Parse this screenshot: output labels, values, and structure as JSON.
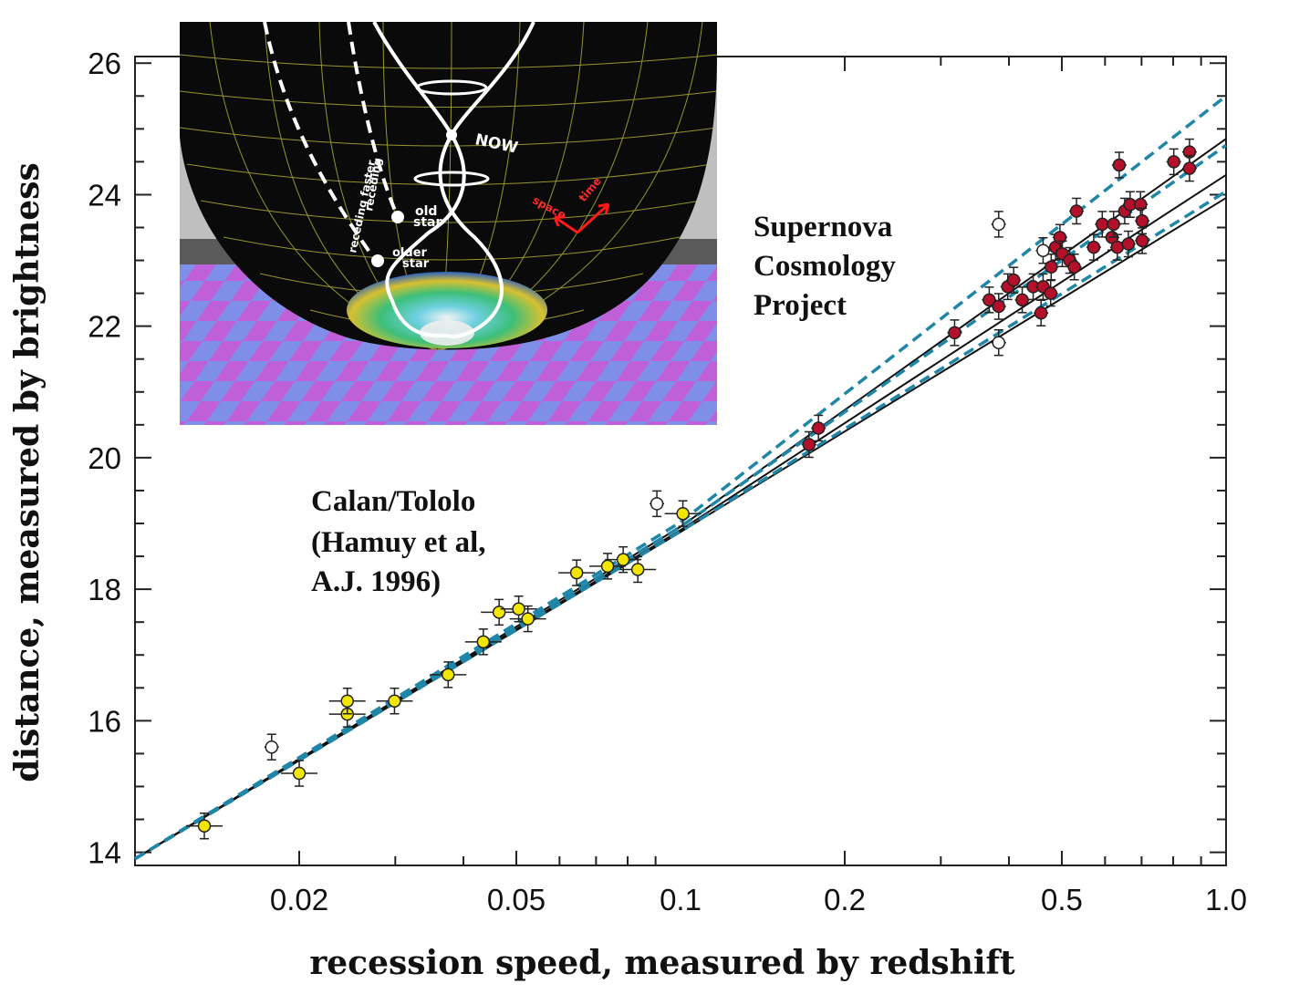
{
  "chart_data": {
    "type": "scatter",
    "xlabel": "recession speed, measured by redshift",
    "ylabel": "distance, measured by brightness",
    "x_scale": "log",
    "xlim": [
      0.01,
      1.0
    ],
    "ylim": [
      13.8,
      26.1
    ],
    "xticks": [
      0.02,
      0.05,
      0.1,
      0.2,
      0.5,
      1.0
    ],
    "xtick_labels": [
      "0.02",
      "0.05",
      "0.1",
      "0.2",
      "0.5",
      "1.0"
    ],
    "yticks": [
      14,
      16,
      18,
      20,
      22,
      24,
      26
    ],
    "ytick_labels": [
      "14",
      "16",
      "18",
      "20",
      "22",
      "24",
      "26"
    ],
    "annotations": [
      {
        "lines": [
          "Calan/Tololo",
          "(Hamuy et al,",
          "A.J. 1996)"
        ]
      },
      {
        "lines": [
          "Supernova",
          "Cosmology",
          "Project"
        ]
      }
    ],
    "series": [
      {
        "color": "#f2e600",
        "points": [
          [
            0.0134,
            14.4
          ],
          [
            0.02,
            15.2
          ],
          [
            0.0245,
            16.1
          ],
          [
            0.0245,
            16.3
          ],
          [
            0.0299,
            16.3
          ],
          [
            0.0375,
            16.7
          ],
          [
            0.0435,
            17.2
          ],
          [
            0.0465,
            17.65
          ],
          [
            0.0505,
            17.7
          ],
          [
            0.0525,
            17.55
          ],
          [
            0.0645,
            18.25
          ],
          [
            0.0735,
            18.35
          ],
          [
            0.0785,
            18.45
          ],
          [
            0.0835,
            18.3
          ],
          [
            0.101,
            19.15
          ]
        ]
      },
      {
        "color": "#b5102a",
        "points": [
          [
            0.172,
            20.2
          ],
          [
            0.179,
            20.45
          ],
          [
            0.318,
            21.9
          ],
          [
            0.368,
            22.4
          ],
          [
            0.383,
            22.3
          ],
          [
            0.398,
            22.6
          ],
          [
            0.408,
            22.7
          ],
          [
            0.423,
            22.4
          ],
          [
            0.443,
            22.6
          ],
          [
            0.458,
            22.2
          ],
          [
            0.462,
            22.6
          ],
          [
            0.477,
            22.5
          ],
          [
            0.478,
            22.9
          ],
          [
            0.487,
            23.2
          ],
          [
            0.496,
            23.35
          ],
          [
            0.501,
            23.1
          ],
          [
            0.517,
            23.0
          ],
          [
            0.527,
            22.9
          ],
          [
            0.532,
            23.75
          ],
          [
            0.572,
            23.2
          ],
          [
            0.593,
            23.55
          ],
          [
            0.618,
            23.35
          ],
          [
            0.622,
            23.55
          ],
          [
            0.632,
            23.2
          ],
          [
            0.637,
            24.45
          ],
          [
            0.652,
            23.75
          ],
          [
            0.662,
            23.25
          ],
          [
            0.667,
            23.85
          ],
          [
            0.697,
            23.85
          ],
          [
            0.702,
            23.6
          ],
          [
            0.702,
            23.3
          ],
          [
            0.802,
            24.5
          ],
          [
            0.857,
            24.65
          ],
          [
            0.857,
            24.4
          ]
        ]
      },
      {
        "color": "#ffffff",
        "points": [
          [
            0.0178,
            15.6
          ],
          [
            0.0905,
            19.3
          ],
          [
            0.383,
            23.55
          ],
          [
            0.383,
            21.75
          ],
          [
            0.462,
            23.15
          ]
        ]
      }
    ],
    "model_lines": [
      {
        "style": "solid",
        "color": "#111111",
        "points": [
          [
            0.01,
            13.9
          ],
          [
            0.1,
            18.95
          ],
          [
            1.0,
            24.85
          ]
        ]
      },
      {
        "style": "solid",
        "color": "#111111",
        "points": [
          [
            0.01,
            13.9
          ],
          [
            0.1,
            18.9
          ],
          [
            1.0,
            24.3
          ]
        ]
      },
      {
        "style": "solid",
        "color": "#111111",
        "points": [
          [
            0.01,
            13.9
          ],
          [
            0.1,
            18.87
          ],
          [
            1.0,
            23.95
          ]
        ]
      },
      {
        "style": "dashed",
        "color": "#1f86a8",
        "points": [
          [
            0.01,
            13.9
          ],
          [
            0.1,
            19.02
          ],
          [
            1.0,
            25.5
          ]
        ]
      },
      {
        "style": "dashed",
        "color": "#1f86a8",
        "points": [
          [
            0.01,
            13.9
          ],
          [
            0.1,
            18.95
          ],
          [
            1.0,
            24.75
          ]
        ]
      },
      {
        "style": "dashed",
        "color": "#1f86a8",
        "points": [
          [
            0.01,
            13.9
          ],
          [
            0.1,
            18.88
          ],
          [
            1.0,
            24.05
          ]
        ]
      }
    ]
  },
  "inset": {
    "labels": {
      "now": "NOW",
      "old_star": [
        "old",
        "star"
      ],
      "older_star": [
        "older",
        "star"
      ],
      "receding": "receding",
      "receding_faster": "receding faster",
      "space": "space",
      "time": "time"
    },
    "colors": {
      "sphere": "#0a0a0a",
      "grid": "#b8b838",
      "arrow": "#ff1a1a",
      "floor_a": "#c060d8",
      "floor_b": "#7f8fe8"
    }
  }
}
